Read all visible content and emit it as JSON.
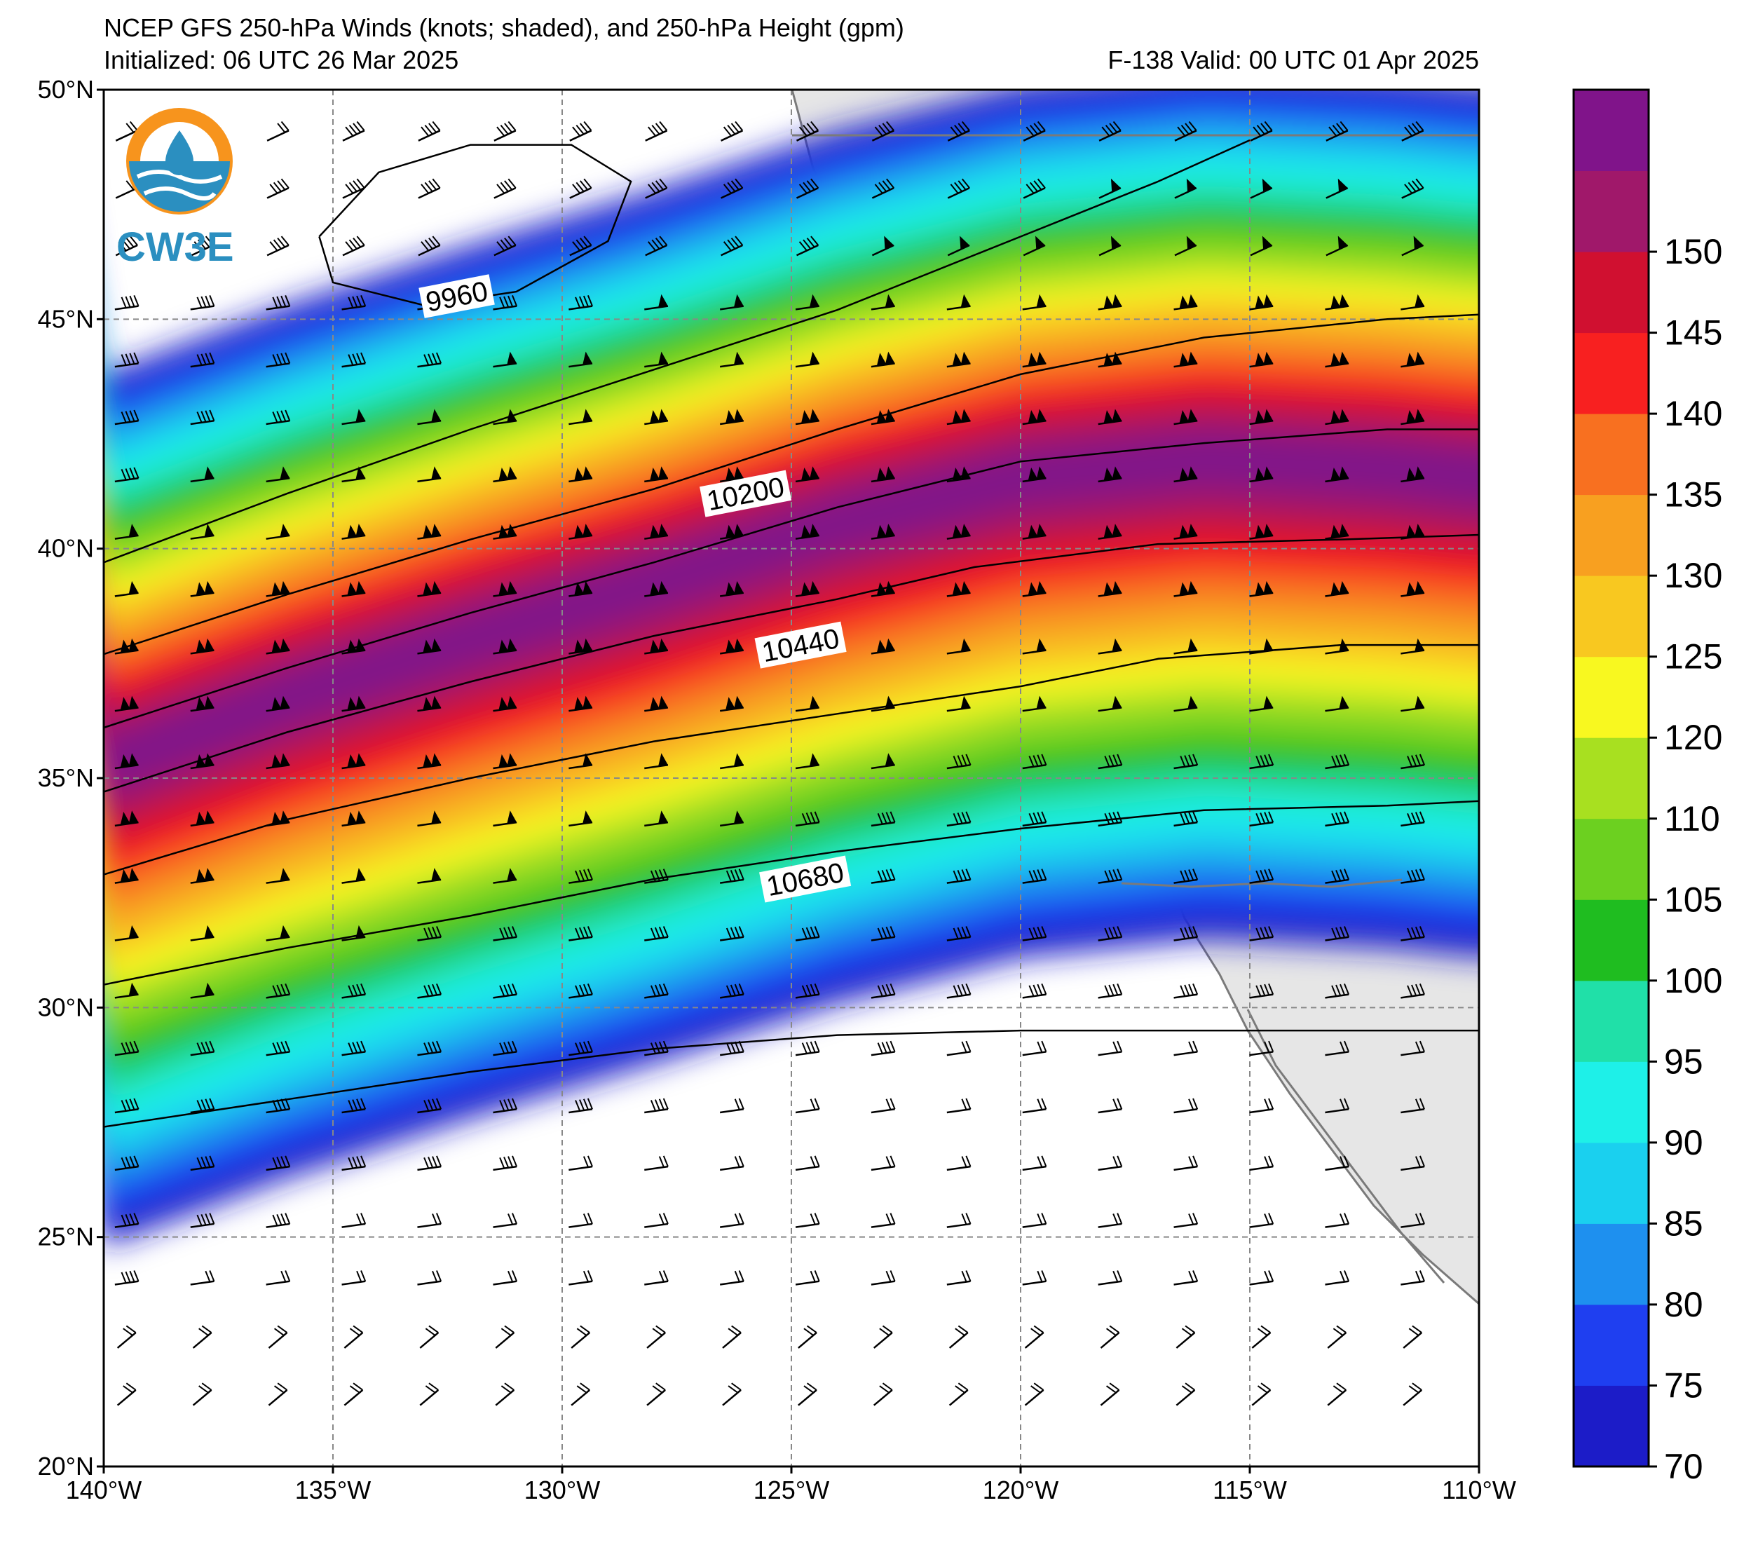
{
  "title": {
    "line1": "NCEP GFS 250-hPa Winds (knots; shaded), and 250-hPa Height (gpm)",
    "line2": "Initialized: 06 UTC 26 Mar 2025",
    "valid": "F-138  Valid: 00 UTC 01 Apr 2025"
  },
  "logo": {
    "text": "CW3E"
  },
  "map": {
    "lon_range": [
      -140,
      -110
    ],
    "lat_range": [
      20,
      50
    ],
    "lat_ticks": [
      {
        "value": 50,
        "label": "50°N"
      },
      {
        "value": 45,
        "label": "45°N"
      },
      {
        "value": 40,
        "label": "40°N"
      },
      {
        "value": 35,
        "label": "35°N"
      },
      {
        "value": 30,
        "label": "30°N"
      },
      {
        "value": 25,
        "label": "25°N"
      },
      {
        "value": 20,
        "label": "20°N"
      }
    ],
    "lon_ticks": [
      {
        "value": -140,
        "label": "140°W"
      },
      {
        "value": -135,
        "label": "135°W"
      },
      {
        "value": -130,
        "label": "130°W"
      },
      {
        "value": -125,
        "label": "125°W"
      },
      {
        "value": -120,
        "label": "120°W"
      },
      {
        "value": -115,
        "label": "115°W"
      },
      {
        "value": -110,
        "label": "110°W"
      }
    ],
    "grid": true
  },
  "colorbar": {
    "min": 70,
    "max": 155,
    "bounds": [
      70,
      75,
      80,
      85,
      90,
      95,
      100,
      105,
      110,
      120,
      125,
      130,
      135,
      140,
      145,
      150,
      155
    ],
    "colors": [
      "#1c1cc8",
      "#1f3ff0",
      "#1e90ef",
      "#1ad0ef",
      "#1ef0e8",
      "#20e0a8",
      "#1fbd20",
      "#6cd020",
      "#a8e020",
      "#f8f820",
      "#f8c820",
      "#f8a020",
      "#f87020",
      "#f82020",
      "#d01030",
      "#a0186a",
      "#80148a"
    ],
    "labels": [
      {
        "value": 70,
        "label": "70"
      },
      {
        "value": 75,
        "label": "75"
      },
      {
        "value": 80,
        "label": "80"
      },
      {
        "value": 85,
        "label": "85"
      },
      {
        "value": 90,
        "label": "90"
      },
      {
        "value": 95,
        "label": "95"
      },
      {
        "value": 100,
        "label": "100"
      },
      {
        "value": 105,
        "label": "105"
      },
      {
        "value": 110,
        "label": "110"
      },
      {
        "value": 120,
        "label": "120"
      },
      {
        "value": 125,
        "label": "125"
      },
      {
        "value": 130,
        "label": "130"
      },
      {
        "value": 135,
        "label": "135"
      },
      {
        "value": 140,
        "label": "140"
      },
      {
        "value": 145,
        "label": "145"
      },
      {
        "value": 150,
        "label": "150"
      }
    ]
  },
  "height_contours": [
    {
      "label": "9960",
      "label_at": [
        -132.3,
        45.5
      ],
      "points": [
        [
          -135.3,
          46.8
        ],
        [
          -134.0,
          48.2
        ],
        [
          -132.0,
          48.8
        ],
        [
          -129.8,
          48.8
        ],
        [
          -128.5,
          48.0
        ],
        [
          -129.0,
          46.7
        ],
        [
          -131.0,
          45.6
        ],
        [
          -133.0,
          45.3
        ],
        [
          -135.0,
          45.8
        ],
        [
          -135.3,
          46.8
        ]
      ]
    },
    {
      "label": "",
      "label_at": null,
      "points": [
        [
          -140,
          39.7
        ],
        [
          -136,
          41.2
        ],
        [
          -132,
          42.6
        ],
        [
          -128,
          43.9
        ],
        [
          -124,
          45.2
        ],
        [
          -120,
          46.8
        ],
        [
          -117,
          48.0
        ],
        [
          -115,
          48.9
        ]
      ]
    },
    {
      "label": "10200",
      "label_at": [
        -126.0,
        41.2
      ],
      "points": [
        [
          -140,
          37.7
        ],
        [
          -136,
          39.0
        ],
        [
          -132,
          40.2
        ],
        [
          -128,
          41.3
        ],
        [
          -124,
          42.6
        ],
        [
          -120,
          43.8
        ],
        [
          -116,
          44.6
        ],
        [
          -112,
          45.0
        ],
        [
          -110,
          45.1
        ]
      ]
    },
    {
      "label": "",
      "label_at": null,
      "points": [
        [
          -140,
          36.1
        ],
        [
          -136,
          37.4
        ],
        [
          -132,
          38.6
        ],
        [
          -128,
          39.7
        ],
        [
          -124,
          40.9
        ],
        [
          -120,
          41.9
        ],
        [
          -116,
          42.3
        ],
        [
          -112,
          42.6
        ],
        [
          -110,
          42.6
        ]
      ]
    },
    {
      "label": "10440",
      "label_at": [
        -124.8,
        37.9
      ],
      "points": [
        [
          -140,
          34.7
        ],
        [
          -136,
          36.0
        ],
        [
          -132,
          37.1
        ],
        [
          -128,
          38.1
        ],
        [
          -124,
          38.9
        ],
        [
          -121,
          39.6
        ],
        [
          -117,
          40.1
        ],
        [
          -113,
          40.2
        ],
        [
          -110,
          40.3
        ]
      ]
    },
    {
      "label": "",
      "label_at": null,
      "points": [
        [
          -140,
          32.9
        ],
        [
          -136,
          34.1
        ],
        [
          -132,
          35.0
        ],
        [
          -128,
          35.8
        ],
        [
          -124,
          36.4
        ],
        [
          -120,
          37.0
        ],
        [
          -117,
          37.6
        ],
        [
          -113,
          37.9
        ],
        [
          -110,
          37.9
        ]
      ]
    },
    {
      "label": "10680",
      "label_at": [
        -124.7,
        32.8
      ],
      "points": [
        [
          -140,
          30.5
        ],
        [
          -136,
          31.3
        ],
        [
          -132,
          32.0
        ],
        [
          -128,
          32.8
        ],
        [
          -124,
          33.4
        ],
        [
          -120,
          33.9
        ],
        [
          -116,
          34.3
        ],
        [
          -112,
          34.4
        ],
        [
          -110,
          34.5
        ]
      ]
    },
    {
      "label": "",
      "label_at": null,
      "points": [
        [
          -140,
          27.4
        ],
        [
          -136,
          28.0
        ],
        [
          -132,
          28.6
        ],
        [
          -128,
          29.1
        ],
        [
          -124,
          29.4
        ],
        [
          -120,
          29.5
        ],
        [
          -116,
          29.5
        ],
        [
          -112,
          29.5
        ],
        [
          -110,
          29.5
        ]
      ]
    }
  ],
  "jet_axis": [
    [
      -140,
      35.3
    ],
    [
      -136,
      36.8
    ],
    [
      -132,
      38.1
    ],
    [
      -128,
      39.3
    ],
    [
      -124,
      40.6
    ],
    [
      -120,
      41.6
    ],
    [
      -116,
      42.0
    ],
    [
      -112,
      41.8
    ],
    [
      -110,
      41.6
    ]
  ]
}
